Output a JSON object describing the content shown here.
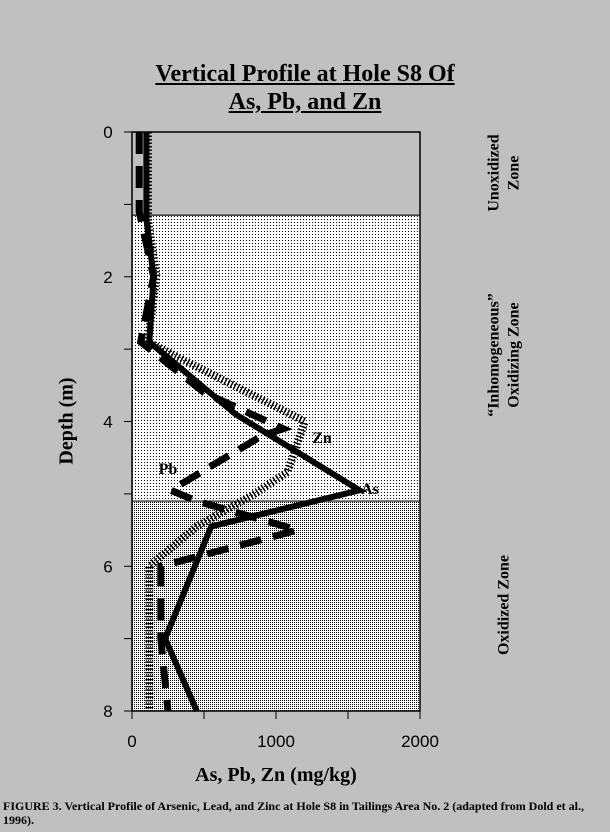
{
  "chart_data": {
    "type": "line",
    "title": [
      "Vertical Profile at Hole S8 Of",
      "As, Pb, and Zn"
    ],
    "xlabel": "As, Pb, Zn (mg/kg)",
    "ylabel": "Depth (m)",
    "xlim": [
      0,
      2000
    ],
    "ylim": [
      8,
      0
    ],
    "xticks": [
      "0",
      "1000",
      "2000"
    ],
    "yticks": [
      "0",
      "2",
      "4",
      "6",
      "8"
    ],
    "grid": false,
    "zones": [
      {
        "label": "Unoxidized Zone",
        "from": 0,
        "to": 1.15,
        "fill": "#c0c0c0"
      },
      {
        "label": "“Inhomogeneous” Oxidizing Zone",
        "from": 1.15,
        "to": 5.1,
        "fill": "light-stipple"
      },
      {
        "label": "Oxidized Zone",
        "from": 5.1,
        "to": 8,
        "fill": "dense-stipple"
      }
    ],
    "series": [
      {
        "name": "As",
        "style": "solid",
        "points": [
          [
            100,
            0
          ],
          [
            100,
            1.2
          ],
          [
            150,
            2
          ],
          [
            120,
            2.9
          ],
          [
            720,
            3.9
          ],
          [
            1580,
            4.95
          ],
          [
            550,
            5.45
          ],
          [
            230,
            7.0
          ],
          [
            450,
            8.0
          ]
        ]
      },
      {
        "name": "Pb",
        "style": "dashed",
        "points": [
          [
            50,
            0
          ],
          [
            50,
            1.1
          ],
          [
            150,
            2
          ],
          [
            60,
            2.9
          ],
          [
            500,
            3.6
          ],
          [
            1050,
            4.1
          ],
          [
            900,
            4.2
          ],
          [
            270,
            4.95
          ],
          [
            450,
            5.1
          ],
          [
            1150,
            5.5
          ],
          [
            200,
            6.0
          ],
          [
            200,
            7.0
          ],
          [
            250,
            8.0
          ]
        ]
      },
      {
        "name": "Zn",
        "style": "dotted",
        "points": [
          [
            110,
            0
          ],
          [
            110,
            1.2
          ],
          [
            170,
            2
          ],
          [
            110,
            2.9
          ],
          [
            1200,
            4.0
          ],
          [
            1080,
            4.7
          ],
          [
            850,
            5.0
          ],
          [
            450,
            5.45
          ],
          [
            120,
            6.0
          ],
          [
            120,
            8.0
          ]
        ]
      }
    ]
  },
  "caption": "FIGURE 3.  Vertical Profile of Arsenic, Lead, and Zinc at Hole S8 in Tailings Area No. 2 (adapted from Dold et al., 1996)."
}
